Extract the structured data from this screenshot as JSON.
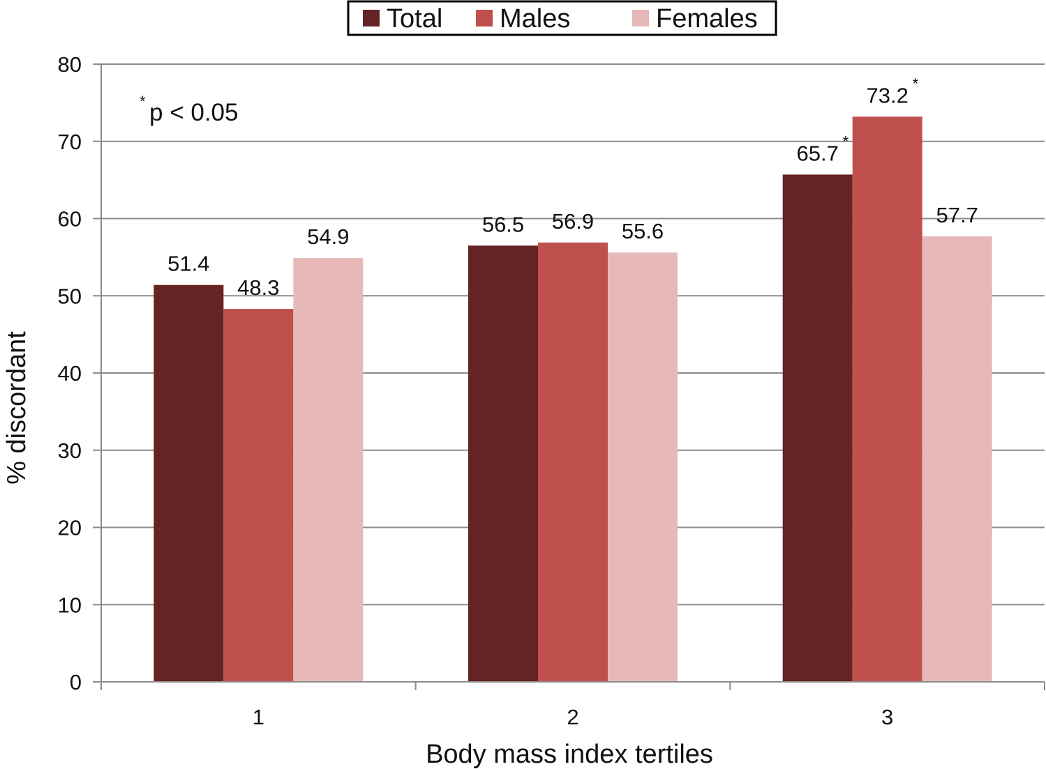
{
  "chart_data": {
    "type": "bar",
    "categories": [
      "1",
      "2",
      "3"
    ],
    "series": [
      {
        "name": "Total",
        "values": [
          51.4,
          56.5,
          65.7
        ],
        "color": "#632423"
      },
      {
        "name": "Males",
        "values": [
          48.3,
          56.9,
          73.2
        ],
        "color": "#C0504D"
      },
      {
        "name": "Females",
        "values": [
          54.9,
          55.6,
          57.7
        ],
        "color": "#E6B9B8"
      }
    ],
    "data_labels": [
      [
        "51.4",
        "48.3",
        "54.9"
      ],
      [
        "56.5",
        "56.9",
        "55.6"
      ],
      [
        "65.7",
        "73.2",
        "57.7"
      ]
    ],
    "significant": [
      [
        false,
        false,
        false
      ],
      [
        false,
        false,
        false
      ],
      [
        true,
        true,
        false
      ]
    ],
    "significance_marker": "*",
    "xlabel": "Body mass index tertiles",
    "ylabel": "% discordant",
    "ylim": [
      0,
      80
    ],
    "yticks": [
      "0",
      "10",
      "20",
      "30",
      "40",
      "50",
      "60",
      "70",
      "80"
    ],
    "grid": true,
    "legend_position": "top-center",
    "annotation": {
      "marker": "*",
      "text": "p < 0.05"
    }
  }
}
